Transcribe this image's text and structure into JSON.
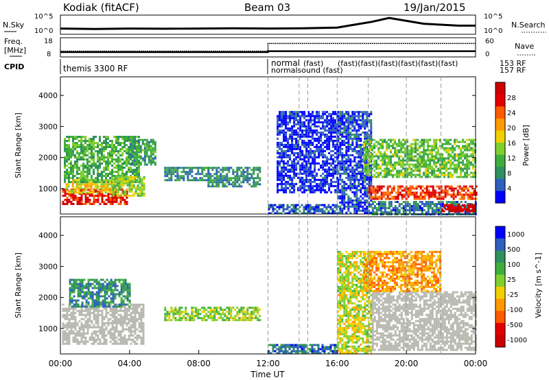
{
  "header": {
    "station": "Kodiak (fitACF)",
    "beam": "Beam 03",
    "date": "19/Jan/2015"
  },
  "colors": {
    "data_scale": [
      "#0000ff",
      "#2e5fbf",
      "#2f8f5f",
      "#3fae3f",
      "#7fcf2f",
      "#f0d000",
      "#ff9a00",
      "#ff5a00",
      "#e00000",
      "#cc0000"
    ],
    "ground_scatter": "#b8b8b0",
    "dashed_line": "#999999"
  },
  "chart_data": [
    {
      "type": "line",
      "panel": "noise",
      "left_label": [
        "N.Sky"
      ],
      "right_label": "N.Search",
      "left_ticks": [
        "10^5",
        "10^0"
      ],
      "right_ticks": [
        "10^5",
        "10^0"
      ],
      "x_range_hours": [
        0,
        24
      ],
      "series": [
        {
          "x": [
            0,
            2,
            4,
            6,
            8,
            10,
            12,
            14,
            16,
            17,
            18,
            19,
            20,
            21,
            22,
            23,
            24
          ],
          "y": [
            0.3,
            0.28,
            0.3,
            0.29,
            0.3,
            0.31,
            0.3,
            0.31,
            0.35,
            0.5,
            0.65,
            0.85,
            0.7,
            0.55,
            0.5,
            0.45,
            0.45
          ]
        }
      ]
    },
    {
      "type": "line",
      "panel": "freq_nave",
      "left_label": [
        "Freq.",
        "[MHz]"
      ],
      "right_label": "Nave",
      "left_ticks": [
        "18",
        "8"
      ],
      "right_ticks": [
        "60",
        "0"
      ],
      "x_range_hours": [
        0,
        24
      ],
      "series": [
        {
          "x": [
            0,
            12,
            12,
            24
          ],
          "y": [
            0.25,
            0.25,
            0.3,
            0.3
          ]
        },
        {
          "x": [
            0,
            12,
            12,
            24
          ],
          "y": [
            0.3,
            0.3,
            0.7,
            0.7
          ]
        }
      ]
    },
    {
      "type": "table",
      "panel": "cpid",
      "label": "CPID",
      "entries": [
        {
          "start": 0,
          "text": "themis 3300 RF"
        },
        {
          "start": 12,
          "text": "normal"
        },
        {
          "start": 12,
          "text": "normalsound (fast)"
        },
        {
          "start": 13.8,
          "text": "(fast)"
        },
        {
          "start": 16,
          "text": "(fast)(fast)(fast)(fast)(fast)(fast)"
        },
        {
          "start": 21.7,
          "text": "153 RF"
        },
        {
          "start": 21.7,
          "text": "157 RF"
        }
      ]
    },
    {
      "type": "heatmap",
      "panel": "power",
      "ylabel": "Slant Range [km]",
      "y_ticks": [
        1000,
        2000,
        3000,
        4000
      ],
      "ylim": [
        180,
        4600
      ],
      "colorbar_label": "Power [dB]",
      "colorbar_ticks": [
        4,
        8,
        12,
        16,
        20,
        24,
        28
      ],
      "colorbar_range": [
        0,
        32
      ],
      "regions": [
        {
          "t0": 0.1,
          "t1": 3.9,
          "r0": 500,
          "r1": 1000,
          "v": 0.85
        },
        {
          "t0": 0.3,
          "t1": 3.5,
          "r0": 900,
          "r1": 1300,
          "v": 0.55
        },
        {
          "t0": 0.2,
          "t1": 4.5,
          "r0": 1200,
          "r1": 2700,
          "v": 0.35
        },
        {
          "t0": 3.0,
          "t1": 4.8,
          "r0": 800,
          "r1": 1400,
          "v": 0.45
        },
        {
          "t0": 4.0,
          "t1": 5.5,
          "r0": 1800,
          "r1": 2600,
          "v": 0.3
        },
        {
          "t0": 6.0,
          "t1": 8.5,
          "r0": 1300,
          "r1": 1700,
          "v": 0.25
        },
        {
          "t0": 8.5,
          "t1": 11.5,
          "r0": 1100,
          "r1": 1700,
          "v": 0.25
        },
        {
          "t0": 12,
          "t1": 16,
          "r0": 200,
          "r1": 500,
          "v": 0.15
        },
        {
          "t0": 12.5,
          "t1": 16,
          "r0": 900,
          "r1": 3500,
          "v": 0.08
        },
        {
          "t0": 16,
          "t1": 18,
          "r0": 200,
          "r1": 3500,
          "v": 0.12
        },
        {
          "t0": 17.5,
          "t1": 24,
          "r0": 1400,
          "r1": 2600,
          "v": 0.4
        },
        {
          "t0": 17.8,
          "t1": 24,
          "r0": 700,
          "r1": 1100,
          "v": 0.8
        },
        {
          "t0": 18,
          "t1": 24,
          "r0": 200,
          "r1": 600,
          "v": 0.2
        },
        {
          "t0": 22,
          "t1": 24,
          "r0": 300,
          "r1": 500,
          "v": 0.95
        }
      ]
    },
    {
      "type": "heatmap",
      "panel": "velocity",
      "ylabel": "Slant Range [km]",
      "y_ticks": [
        1000,
        2000,
        3000,
        4000
      ],
      "ylim": [
        180,
        4600
      ],
      "xlabel": "Time UT",
      "x_ticks": [
        "00:00",
        "04:00",
        "08:00",
        "12:00",
        "16:00",
        "20:00",
        "00:00"
      ],
      "colorbar_label": "Velocity [m s^-1]",
      "colorbar_ticks": [
        "1000",
        "500",
        "100",
        "25",
        "-25",
        "-100",
        "-500",
        "-1000"
      ],
      "regions": [
        {
          "t0": 0.1,
          "t1": 4.8,
          "r0": 500,
          "r1": 1800,
          "v": "gs"
        },
        {
          "t0": 0.5,
          "t1": 4.0,
          "r0": 1700,
          "r1": 2600,
          "v": 0.75
        },
        {
          "t0": 6.0,
          "t1": 11.5,
          "r0": 1300,
          "r1": 1700,
          "v": 0.55
        },
        {
          "t0": 12,
          "t1": 16,
          "r0": 200,
          "r1": 500,
          "v": 0.8
        },
        {
          "t0": 16,
          "t1": 18,
          "r0": 200,
          "r1": 3500,
          "v": 0.5
        },
        {
          "t0": 18,
          "t1": 24,
          "r0": 300,
          "r1": 2200,
          "v": "gs"
        },
        {
          "t0": 17.5,
          "t1": 22,
          "r0": 2200,
          "r1": 3500,
          "v": 0.35
        }
      ]
    }
  ]
}
